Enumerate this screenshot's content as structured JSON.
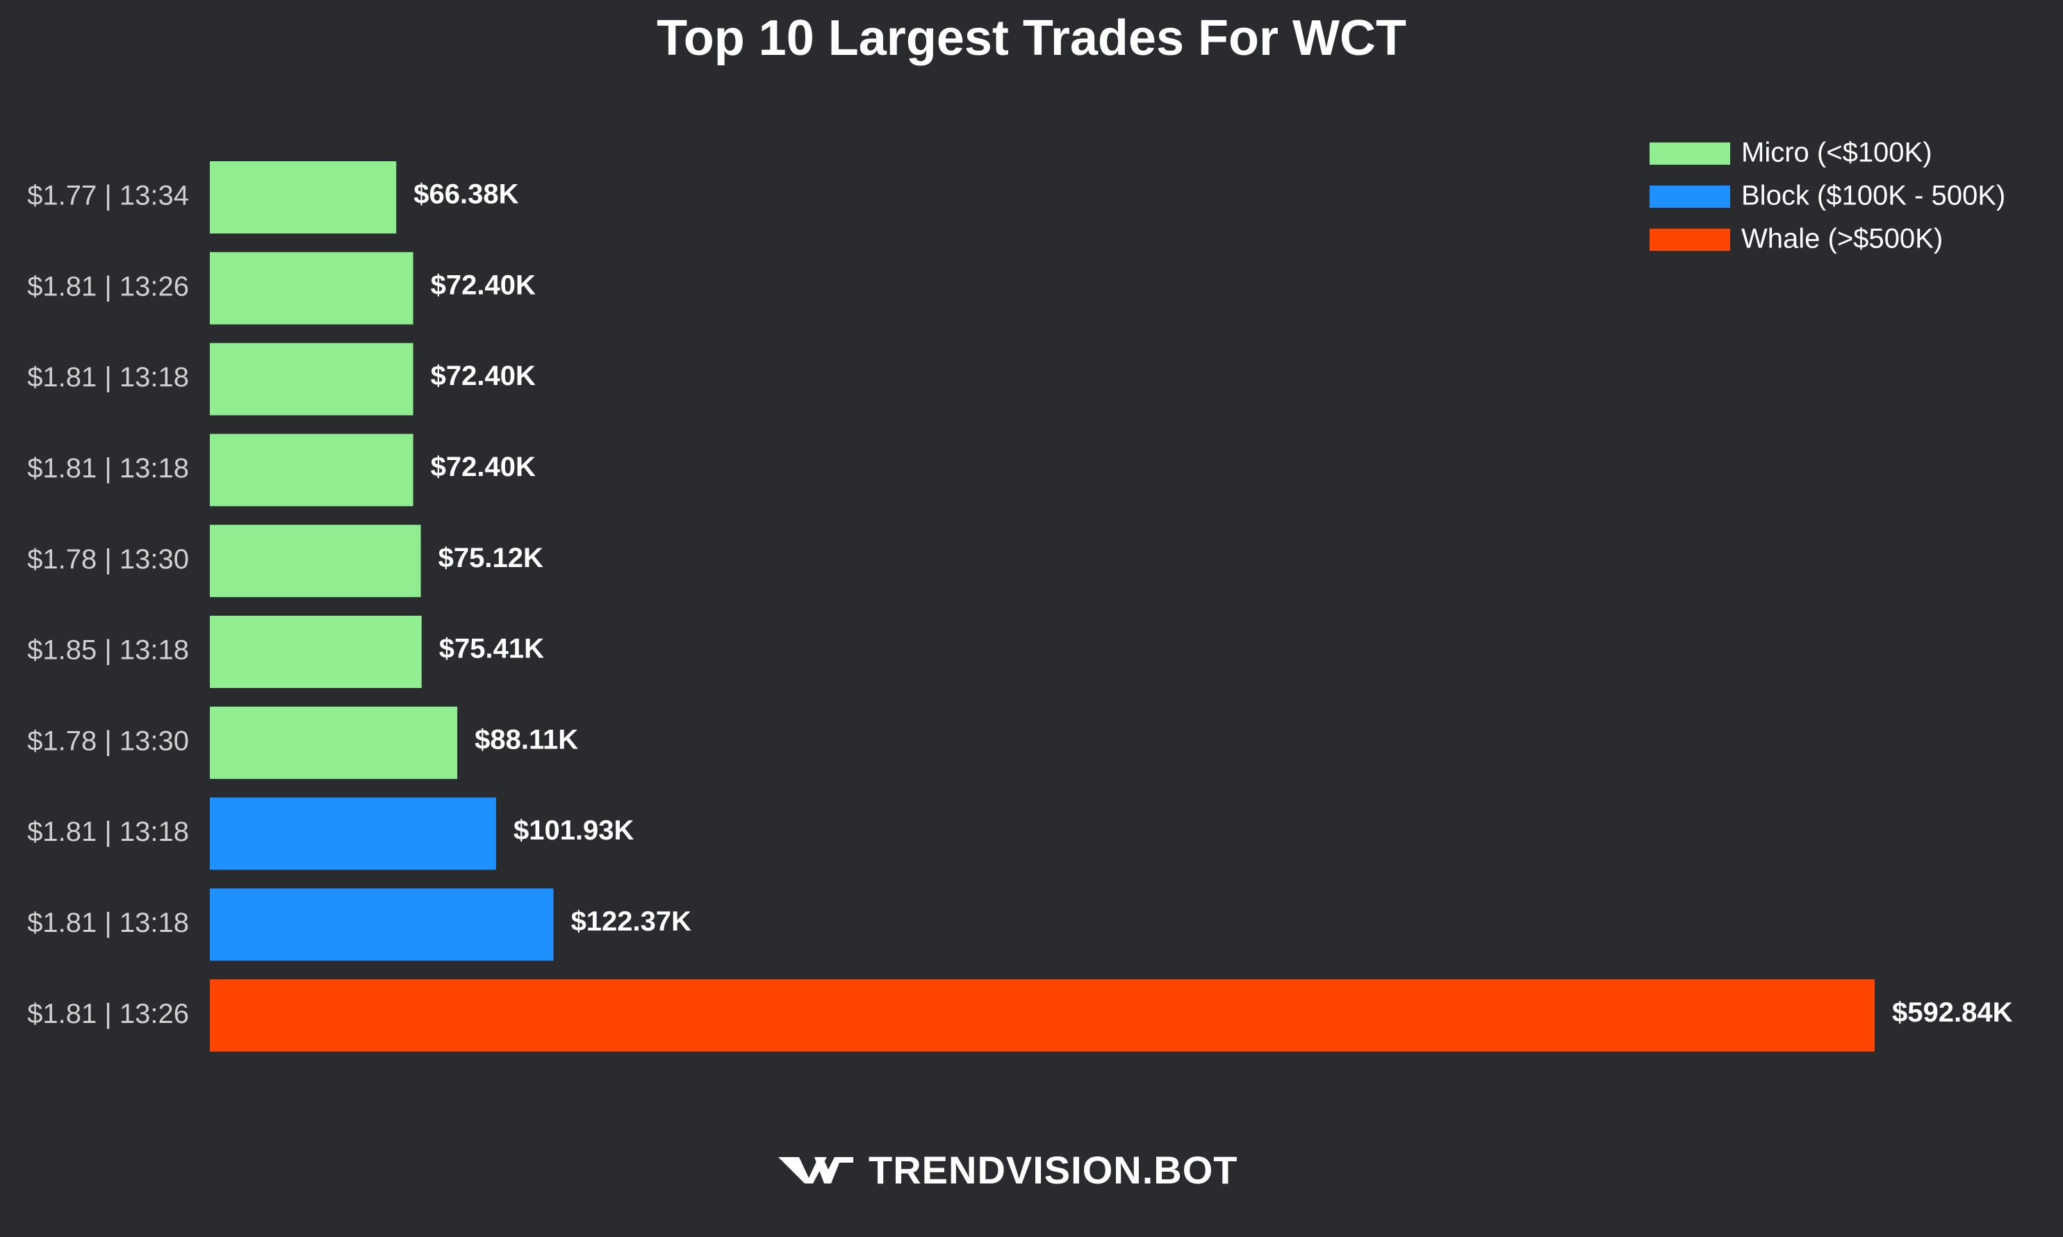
{
  "chart_data": {
    "type": "bar",
    "orientation": "horizontal",
    "title": "Top 10 Largest Trades For WCT",
    "categories": [
      "$1.77 | 13:34",
      "$1.81 | 13:26",
      "$1.81 | 13:18",
      "$1.81 | 13:18",
      "$1.78 | 13:30",
      "$1.85 | 13:18",
      "$1.78 | 13:30",
      "$1.81 | 13:18",
      "$1.81 | 13:18",
      "$1.81 | 13:26"
    ],
    "values": [
      66.38,
      72.4,
      72.4,
      72.4,
      75.12,
      75.41,
      88.11,
      101.93,
      122.37,
      592.84
    ],
    "value_labels": [
      "$66.38K",
      "$72.40K",
      "$72.40K",
      "$72.40K",
      "$75.12K",
      "$75.41K",
      "$88.11K",
      "$101.93K",
      "$122.37K",
      "$592.84K"
    ],
    "value_unit": "K USD",
    "bar_class": [
      "micro",
      "micro",
      "micro",
      "micro",
      "micro",
      "micro",
      "micro",
      "block",
      "block",
      "whale"
    ],
    "xlim": [
      0,
      592.84
    ],
    "grid": false,
    "legend_position": "top-right",
    "legend": [
      {
        "key": "micro",
        "label": "Micro (<$100K)",
        "color": "#90ee90"
      },
      {
        "key": "block",
        "label": "Block ($100K - 500K)",
        "color": "#1e90ff"
      },
      {
        "key": "whale",
        "label": "Whale (>$500K)",
        "color": "#ff4500"
      }
    ]
  },
  "colors": {
    "background": "#2a2b2f",
    "label_text": "#d0d0d0",
    "value_text": "#ffffff"
  },
  "branding": {
    "text": "TRENDVISION.BOT",
    "icon": "trendvision-logo-icon"
  }
}
